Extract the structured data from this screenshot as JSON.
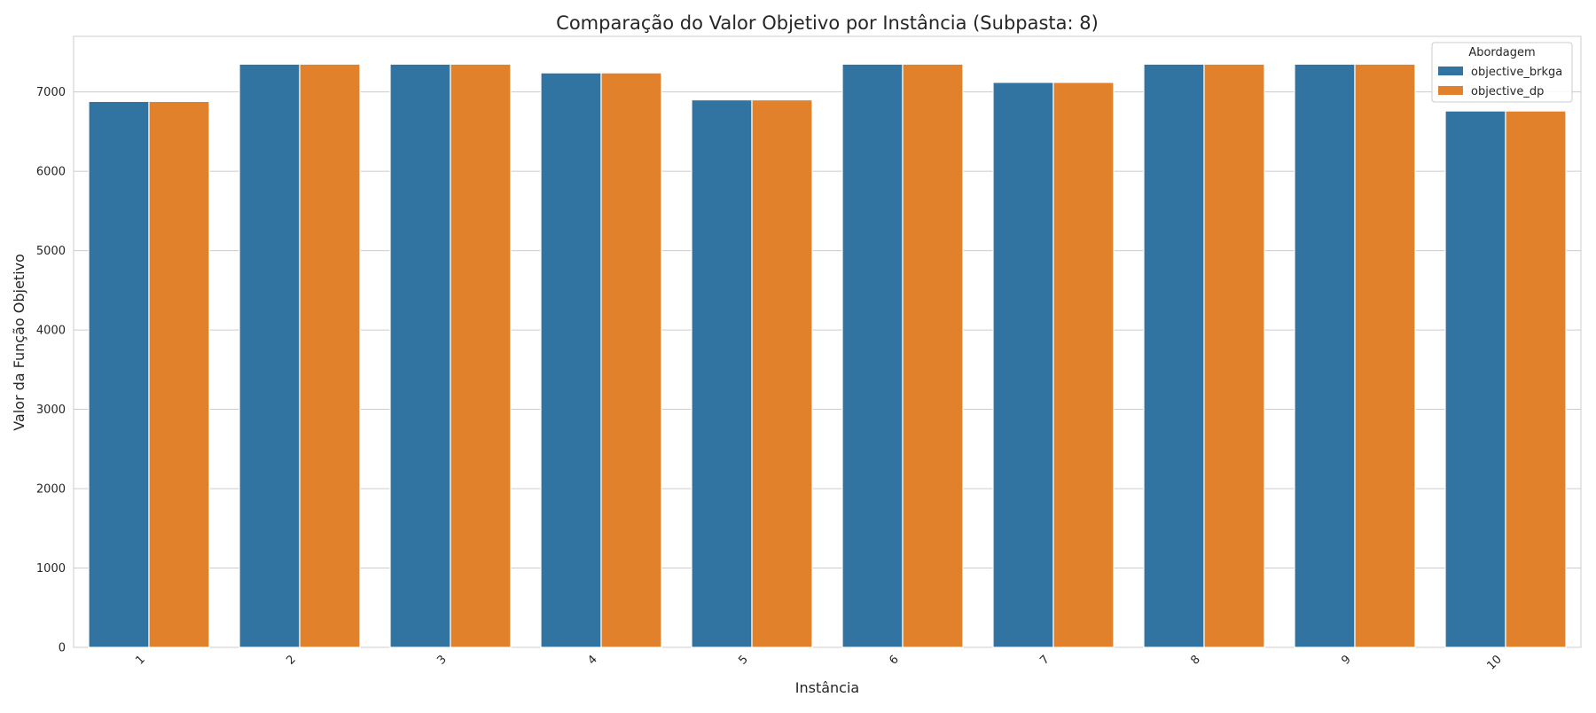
{
  "chart_data": {
    "type": "bar",
    "title": "Comparação do Valor Objetivo por Instância (Subpasta: 8)",
    "xlabel": "Instância",
    "ylabel": "Valor da Função Objetivo",
    "categories": [
      "1",
      "2",
      "3",
      "4",
      "5",
      "6",
      "7",
      "8",
      "9",
      "10"
    ],
    "series": [
      {
        "name": "objective_brkga",
        "color": "#3274a1",
        "values": [
          6880,
          7350,
          7350,
          7240,
          6900,
          7350,
          7120,
          7350,
          7350,
          6760
        ]
      },
      {
        "name": "objective_dp",
        "color": "#e1812c",
        "values": [
          6880,
          7350,
          7350,
          7240,
          6900,
          7350,
          7120,
          7350,
          7350,
          6760
        ]
      }
    ],
    "ylim": [
      0,
      7700
    ],
    "yticks": [
      0,
      1000,
      2000,
      3000,
      4000,
      5000,
      6000,
      7000
    ],
    "grid": "horizontal",
    "legend": {
      "title": "Abordagem",
      "position": "top-right"
    }
  }
}
